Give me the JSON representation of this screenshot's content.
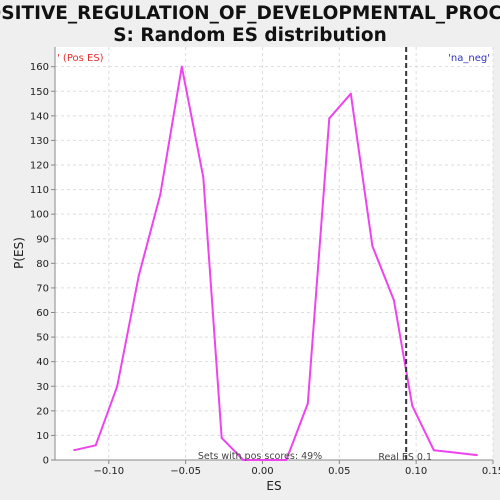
{
  "chart_data": {
    "type": "line",
    "title_lines": [
      "POSITIVE_REGULATION_OF_DEVELOPMENTAL_PROCES",
      "S: Random ES distribution"
    ],
    "xlabel": "ES",
    "ylabel": "P(ES)",
    "xlim": [
      -0.135,
      0.15
    ],
    "ylim": [
      0,
      168
    ],
    "x_ticks": [
      -0.1,
      -0.05,
      0.0,
      0.05,
      0.1,
      0.15
    ],
    "x_tick_labels": [
      "−0.10",
      "−0.05",
      "0.00",
      "0.05",
      "0.10",
      "0.15"
    ],
    "y_ticks": [
      0,
      10,
      20,
      30,
      40,
      50,
      60,
      70,
      80,
      90,
      100,
      110,
      120,
      130,
      140,
      150,
      160
    ],
    "grid": true,
    "series": [
      {
        "color": "#ee44ee",
        "x": [
          -0.1225,
          -0.1085,
          -0.0945,
          -0.0805,
          -0.0665,
          -0.0525,
          -0.0385,
          -0.0265,
          -0.0125,
          0.0015,
          0.0155,
          0.0295,
          0.0435,
          0.0575,
          0.0715,
          0.0855,
          0.0975,
          0.1115,
          0.1255,
          0.1395
        ],
        "values": [
          4,
          6,
          30,
          75,
          108,
          160,
          115,
          9,
          0,
          0,
          0,
          23,
          139,
          149,
          87,
          65,
          22,
          4,
          3,
          2
        ]
      }
    ],
    "real_es": {
      "x": 0.0935,
      "label": "Real ES 0.1",
      "color": "#333333"
    },
    "pos_label": {
      "text": "' (Pos ES)",
      "color": "#e03030"
    },
    "neg_label": {
      "text": "'na_neg'",
      "color": "#3030c0"
    },
    "annotation": "Sets with pos scores: 49%"
  }
}
